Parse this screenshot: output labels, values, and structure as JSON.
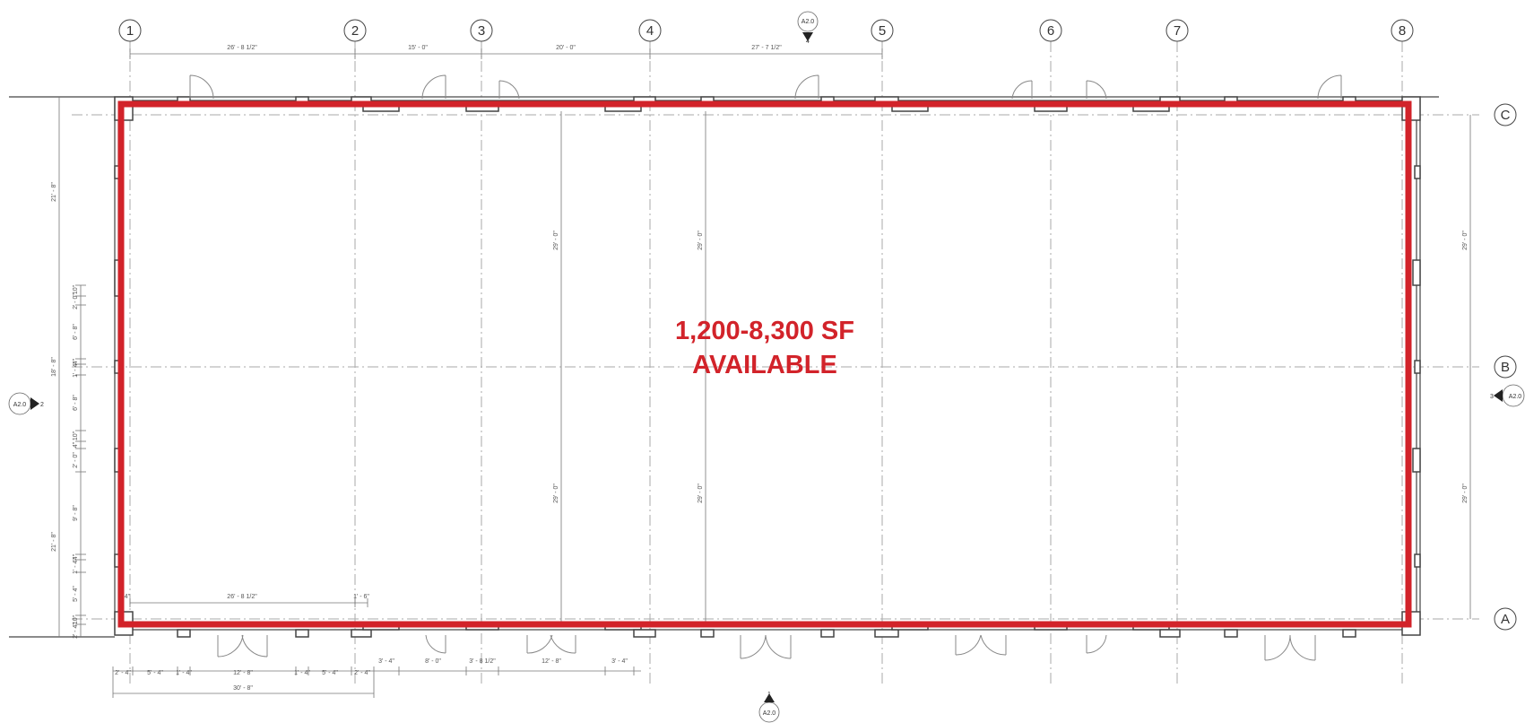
{
  "colors": {
    "outline": "#d2232a",
    "line": "#444444",
    "dim": "#777777",
    "grid": "#aaaaaa"
  },
  "callout": {
    "line1": "1,200-8,300 SF",
    "line2": "AVAILABLE"
  },
  "grid_columns": [
    {
      "label": "1"
    },
    {
      "label": "2"
    },
    {
      "label": "3"
    },
    {
      "label": "4"
    },
    {
      "label": "5"
    },
    {
      "label": "6"
    },
    {
      "label": "7"
    },
    {
      "label": "8"
    }
  ],
  "grid_rows": [
    {
      "label": "C"
    },
    {
      "label": "B"
    },
    {
      "label": "A"
    }
  ],
  "section_markers": {
    "top": {
      "ref": "A2.0",
      "num": "4"
    },
    "bottom": {
      "ref": "A2.0",
      "num": "1"
    },
    "left": {
      "ref": "A2.0",
      "num": "2"
    },
    "right": {
      "ref": "A2.0",
      "num": "3"
    }
  },
  "dimensions": {
    "top": [
      "26' - 8 1/2\"",
      "15' - 0\"",
      "20' - 0\"",
      "27' - 7 1/2\""
    ],
    "interior_bottom": [
      "26' - 8 1/2\"",
      "1' - 6\"",
      "4\""
    ],
    "interior_vertical": [
      "29' - 0\"",
      "29' - 0\"",
      "29' - 0\"",
      "29' - 0\""
    ],
    "right": [
      "29' - 0\"",
      "29' - 0\""
    ],
    "left_overall": [
      "21' - 8\"",
      "18' - 8\"",
      "21' - 8\""
    ],
    "left_detail": [
      "10\"",
      "2' - 0\"",
      "6' - 8\"",
      "4\"",
      "1' - 4\"",
      "6' - 8\"",
      "10\"",
      "4\"",
      "2' - 0\"",
      "9' - 8\"",
      "4\"",
      "1' - 4\"",
      "5' - 4\"",
      "10\"",
      "2' - 4\""
    ],
    "bottom_row1": [
      "2' - 4\"",
      "5' - 4\"",
      "1' - 4\"",
      "12' - 8\"",
      "1' - 4\"",
      "5' - 4\"",
      "2' - 4\"",
      "3' - 4\"",
      "8' - 0\"",
      "3' - 8 1/2\"",
      "12' - 8\"",
      "3' - 4\""
    ],
    "bottom_total": "30' - 8\""
  }
}
